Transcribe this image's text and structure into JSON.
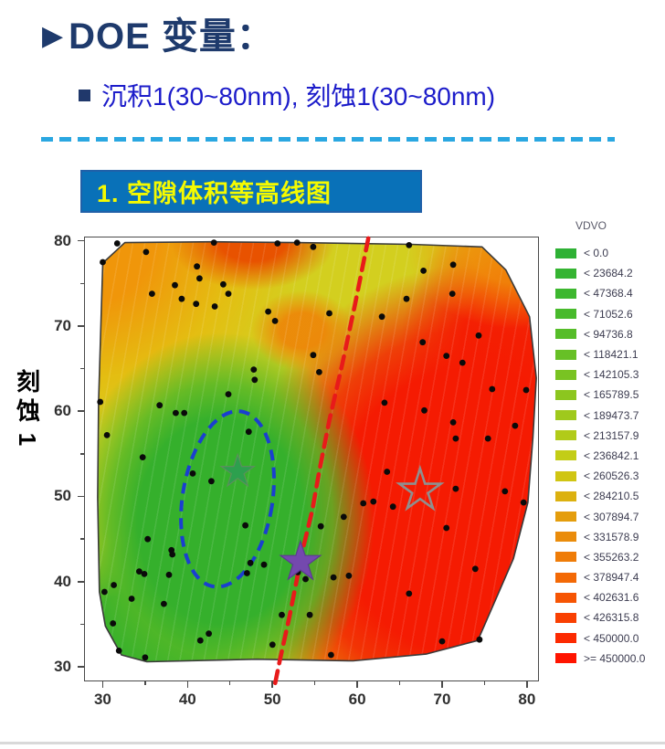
{
  "header": {
    "arrow": "▶",
    "title": "DOE 变量：",
    "bullet": "沉积1(30~80nm), 刻蚀1(30~80nm)"
  },
  "section_box": {
    "title": "1. 空隙体积等高线图"
  },
  "chart_data": {
    "type": "contour-scatter",
    "title": "1. 空隙体积等高线图",
    "xlabel": "",
    "ylabel": "刻蚀1",
    "xlim": [
      27.8,
      81.2
    ],
    "ylim": [
      28.5,
      80.5
    ],
    "x_major_ticks": [
      30,
      40,
      50,
      60,
      70,
      80
    ],
    "x_minor_ticks": [
      35,
      45,
      55,
      65,
      75
    ],
    "y_major_ticks": [
      30,
      40,
      50,
      60,
      70,
      80
    ],
    "y_minor_ticks": [
      35,
      45,
      55,
      65,
      75
    ],
    "legend_title": "VDVO",
    "legend": [
      {
        "label": "< 0.0",
        "color": "#2EB135"
      },
      {
        "label": "< 23684.2",
        "color": "#35B432"
      },
      {
        "label": "< 47368.4",
        "color": "#3DB72F"
      },
      {
        "label": "< 71052.6",
        "color": "#48BA2C"
      },
      {
        "label": "< 94736.8",
        "color": "#56BD29"
      },
      {
        "label": "< 118421.1",
        "color": "#67C026"
      },
      {
        "label": "< 142105.3",
        "color": "#79C322"
      },
      {
        "label": "< 165789.5",
        "color": "#8CC61F"
      },
      {
        "label": "< 189473.7",
        "color": "#9FC91C"
      },
      {
        "label": "< 213157.9",
        "color": "#B1CB19"
      },
      {
        "label": "< 236842.1",
        "color": "#C3CD16"
      },
      {
        "label": "< 260526.3",
        "color": "#D0C513"
      },
      {
        "label": "< 284210.5",
        "color": "#DCB110"
      },
      {
        "label": "< 307894.7",
        "color": "#E49D0D"
      },
      {
        "label": "< 331578.9",
        "color": "#EA8C0B"
      },
      {
        "label": "< 355263.2",
        "color": "#EF7C08"
      },
      {
        "label": "< 378947.4",
        "color": "#F36906"
      },
      {
        "label": "< 402631.6",
        "color": "#F65504"
      },
      {
        "label": "< 426315.8",
        "color": "#F94002"
      },
      {
        "label": "< 450000.0",
        "color": "#FC2A01"
      },
      {
        "label": ">= 450000.0",
        "color": "#FF1400"
      }
    ],
    "region_colors": {
      "green": "#35B02C",
      "green_edge": "#52B827",
      "yellow_base": "#D3CF1F",
      "orange": "#F0960A",
      "orange_mid": "#EE8408",
      "orange_red": "#E85200",
      "red": "#F51B02",
      "outline": "#3A3A3A"
    },
    "hull": [
      [
        29.9,
        77.5
      ],
      [
        32.5,
        79.9
      ],
      [
        43.0,
        80.0
      ],
      [
        52.8,
        79.9
      ],
      [
        66.2,
        79.7
      ],
      [
        74.6,
        79.4
      ],
      [
        77.4,
        76.7
      ],
      [
        80.2,
        71.2
      ],
      [
        81.0,
        64.0
      ],
      [
        80.6,
        57.0
      ],
      [
        80.0,
        49.4
      ],
      [
        78.3,
        42.8
      ],
      [
        74.1,
        33.2
      ],
      [
        68.0,
        31.6
      ],
      [
        59.4,
        30.8
      ],
      [
        48.0,
        31.0
      ],
      [
        35.1,
        30.7
      ],
      [
        32.1,
        31.5
      ],
      [
        30.2,
        34.9
      ],
      [
        29.5,
        38.9
      ],
      [
        29.3,
        50.0
      ],
      [
        29.4,
        61.2
      ]
    ],
    "scatter_points": [
      [
        31.6,
        79.8
      ],
      [
        43.0,
        79.9
      ],
      [
        50.5,
        79.8
      ],
      [
        52.8,
        79.9
      ],
      [
        54.7,
        79.4
      ],
      [
        66.0,
        79.6
      ],
      [
        35.0,
        78.8
      ],
      [
        29.9,
        77.6
      ],
      [
        71.2,
        77.3
      ],
      [
        67.7,
        76.6
      ],
      [
        41.0,
        77.1
      ],
      [
        41.3,
        75.7
      ],
      [
        38.4,
        74.9
      ],
      [
        44.1,
        75.0
      ],
      [
        44.7,
        73.9
      ],
      [
        35.7,
        73.9
      ],
      [
        39.2,
        73.3
      ],
      [
        40.9,
        72.7
      ],
      [
        43.1,
        72.4
      ],
      [
        71.1,
        73.9
      ],
      [
        65.7,
        73.3
      ],
      [
        49.4,
        71.8
      ],
      [
        56.6,
        71.6
      ],
      [
        50.2,
        70.7
      ],
      [
        62.8,
        71.2
      ],
      [
        67.6,
        68.2
      ],
      [
        74.2,
        69.0
      ],
      [
        70.4,
        66.6
      ],
      [
        54.7,
        66.7
      ],
      [
        55.4,
        64.7
      ],
      [
        47.7,
        65.0
      ],
      [
        47.8,
        63.8
      ],
      [
        72.3,
        65.8
      ],
      [
        75.8,
        62.7
      ],
      [
        79.8,
        62.6
      ],
      [
        44.7,
        62.1
      ],
      [
        29.6,
        61.2
      ],
      [
        36.6,
        60.8
      ],
      [
        38.5,
        59.9
      ],
      [
        39.5,
        59.9
      ],
      [
        47.1,
        57.7
      ],
      [
        63.1,
        61.1
      ],
      [
        67.8,
        60.2
      ],
      [
        71.2,
        58.8
      ],
      [
        30.4,
        57.3
      ],
      [
        34.6,
        54.7
      ],
      [
        40.5,
        52.8
      ],
      [
        42.7,
        51.9
      ],
      [
        63.4,
        53.0
      ],
      [
        71.5,
        56.9
      ],
      [
        75.3,
        56.9
      ],
      [
        78.5,
        58.4
      ],
      [
        71.5,
        51.0
      ],
      [
        77.3,
        50.7
      ],
      [
        79.5,
        49.4
      ],
      [
        60.6,
        49.3
      ],
      [
        61.8,
        49.5
      ],
      [
        64.1,
        48.9
      ],
      [
        70.4,
        46.4
      ],
      [
        55.6,
        46.6
      ],
      [
        58.3,
        47.7
      ],
      [
        46.7,
        46.7
      ],
      [
        35.2,
        45.1
      ],
      [
        38.0,
        43.8
      ],
      [
        38.1,
        43.3
      ],
      [
        34.2,
        41.3
      ],
      [
        34.8,
        41.0
      ],
      [
        37.7,
        40.9
      ],
      [
        47.3,
        42.3
      ],
      [
        48.9,
        42.1
      ],
      [
        46.9,
        41.1
      ],
      [
        52.9,
        41.2
      ],
      [
        53.8,
        40.4
      ],
      [
        31.2,
        39.7
      ],
      [
        30.1,
        38.9
      ],
      [
        33.3,
        38.1
      ],
      [
        37.1,
        37.5
      ],
      [
        57.1,
        40.6
      ],
      [
        58.9,
        40.8
      ],
      [
        66.0,
        38.7
      ],
      [
        73.8,
        41.6
      ],
      [
        51.0,
        36.2
      ],
      [
        54.3,
        36.2
      ],
      [
        42.4,
        34.0
      ],
      [
        41.4,
        33.2
      ],
      [
        31.1,
        35.2
      ],
      [
        31.8,
        32.0
      ],
      [
        49.9,
        32.7
      ],
      [
        56.8,
        31.5
      ],
      [
        34.9,
        31.2
      ],
      [
        69.9,
        33.1
      ],
      [
        74.3,
        33.3
      ]
    ],
    "stars": [
      {
        "name": "green-star",
        "x": 45.8,
        "y": 53.0,
        "size": 19,
        "fill": "#2DA04E",
        "stroke": "#5C8F5C"
      },
      {
        "name": "purple-star",
        "x": 53.2,
        "y": 42.4,
        "size": 23,
        "fill": "#7449AE",
        "stroke": "#5C3A92"
      },
      {
        "name": "hollow-star",
        "x": 67.3,
        "y": 50.8,
        "size": 24,
        "fill": "none",
        "stroke": "#8F8F8F"
      }
    ],
    "ellipse": {
      "cx": 44.6,
      "cy": 49.8,
      "rx": 5.3,
      "ry": 10.4,
      "rotation_deg": 9,
      "color": "#1A3FD0"
    },
    "red_dashed_line": {
      "color": "#E81A1A",
      "points": [
        [
          61.2,
          80.4
        ],
        [
          59.6,
          72.5
        ],
        [
          58.1,
          65.5
        ],
        [
          56.6,
          59.0
        ],
        [
          55.4,
          53.0
        ],
        [
          54.6,
          48.5
        ],
        [
          53.5,
          44.0
        ],
        [
          52.7,
          40.0
        ],
        [
          51.9,
          36.0
        ],
        [
          50.8,
          31.0
        ],
        [
          50.1,
          27.6
        ]
      ]
    }
  }
}
